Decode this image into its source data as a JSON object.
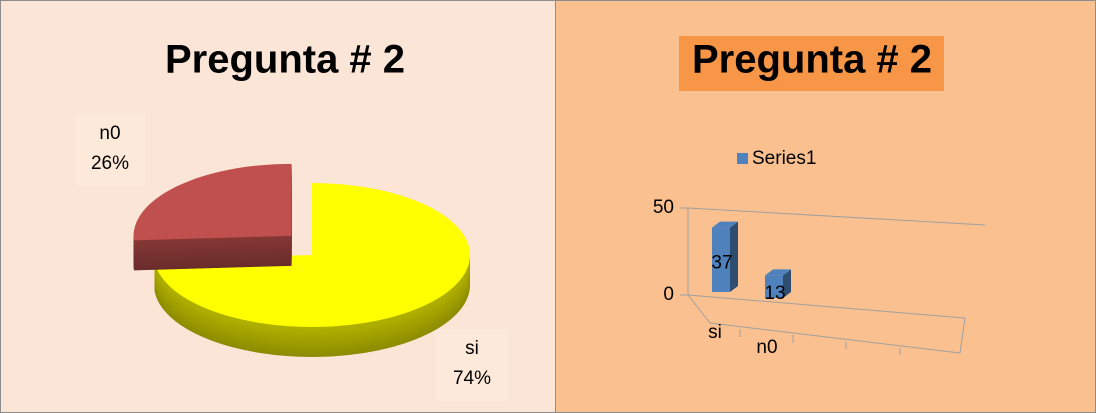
{
  "chart_data": [
    {
      "type": "pie",
      "title": "Pregunta # 2",
      "categories": [
        "si",
        "n0"
      ],
      "values": [
        74,
        26
      ],
      "value_labels": [
        "74%",
        "26%"
      ],
      "colors": [
        "#ffff00",
        "#c0504d"
      ]
    },
    {
      "type": "bar",
      "title": "Pregunta # 2",
      "categories": [
        "si",
        "n0"
      ],
      "series": [
        {
          "name": "Series1",
          "color": "#4f81bd",
          "values": [
            37,
            13
          ]
        }
      ],
      "ylim": [
        0,
        50
      ],
      "yticks": [
        0,
        50
      ]
    }
  ]
}
